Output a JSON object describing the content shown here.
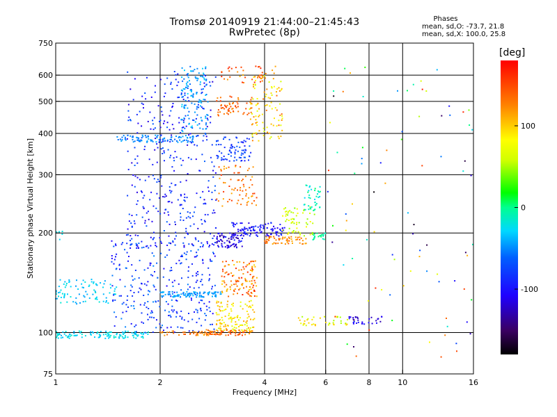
{
  "chart_data": {
    "type": "scatter",
    "title": "Tromsø 20140919 21:44:00–21:45:43",
    "subtitle": "RwPretec (8p)",
    "xlabel": "Frequency [MHz]",
    "ylabel": "Stationary phase Virtual Height [km]",
    "xscale": "log",
    "yscale": "log",
    "xlim": [
      1,
      16
    ],
    "ylim": [
      75,
      750
    ],
    "x_ticks": [
      1,
      2,
      4,
      6,
      8,
      10,
      16
    ],
    "x_tick_labels": [
      "1",
      "2",
      "4",
      "6",
      "8",
      "10",
      "16"
    ],
    "y_ticks": [
      75,
      100,
      200,
      300,
      400,
      500,
      600,
      750
    ],
    "y_tick_labels": [
      "75",
      "100",
      "200",
      "300",
      "400",
      "500",
      "600",
      "750"
    ],
    "grid": true,
    "legend": {
      "title": "Phases",
      "lines": [
        "mean, sd,O: -73.7, 21.8",
        "mean, sd,X: 100.0, 25.8"
      ]
    },
    "colorbar": {
      "unit": "[deg]",
      "range": [
        -180,
        180
      ],
      "tick_values": [
        100,
        0,
        -100
      ],
      "tick_labels": [
        "100",
        "0",
        "-100"
      ]
    },
    "clusters": [
      {
        "f": [
          1.0,
          1.85
        ],
        "h": [
          96,
          101
        ],
        "phase": [
          -40,
          -15
        ],
        "n": 120
      },
      {
        "f": [
          1.0,
          1.5
        ],
        "h": [
          122,
          145
        ],
        "phase": [
          -45,
          -15
        ],
        "n": 90
      },
      {
        "f": [
          1.0,
          1.05
        ],
        "h": [
          185,
          205
        ],
        "phase": [
          -35,
          -20
        ],
        "n": 6
      },
      {
        "f": [
          1.45,
          2.9
        ],
        "h": [
          100,
          190
        ],
        "phase": [
          -110,
          -50
        ],
        "n": 300
      },
      {
        "f": [
          1.6,
          2.9
        ],
        "h": [
          180,
          620
        ],
        "phase": [
          -120,
          -60
        ],
        "n": 380
      },
      {
        "f": [
          1.5,
          2.5
        ],
        "h": [
          375,
          395
        ],
        "phase": [
          -60,
          -40
        ],
        "n": 90
      },
      {
        "f": [
          2.0,
          3.0
        ],
        "h": [
          128,
          133
        ],
        "phase": [
          -55,
          -35
        ],
        "n": 90
      },
      {
        "f": [
          2.0,
          2.9
        ],
        "h": [
          98,
          101
        ],
        "phase": [
          110,
          150
        ],
        "n": 40
      },
      {
        "f": [
          2.3,
          2.75
        ],
        "h": [
          400,
          640
        ],
        "phase": [
          -60,
          -30
        ],
        "n": 120
      },
      {
        "f": [
          2.7,
          3.7
        ],
        "h": [
          98,
          102
        ],
        "phase": [
          120,
          160
        ],
        "n": 70
      },
      {
        "f": [
          2.9,
          3.75
        ],
        "h": [
          100,
          125
        ],
        "phase": [
          60,
          120
        ],
        "n": 120
      },
      {
        "f": [
          3.0,
          3.8
        ],
        "h": [
          128,
          165
        ],
        "phase": [
          100,
          170
        ],
        "n": 120
      },
      {
        "f": [
          2.9,
          3.5
        ],
        "h": [
          180,
          200
        ],
        "phase": [
          -140,
          -90
        ],
        "n": 80
      },
      {
        "f": [
          3.2,
          4.6
        ],
        "h": [
          195,
          215
        ],
        "phase": [
          -120,
          -80
        ],
        "n": 100
      },
      {
        "f": [
          2.9,
          3.8
        ],
        "h": [
          240,
          320
        ],
        "phase": [
          110,
          160
        ],
        "n": 70
      },
      {
        "f": [
          2.9,
          3.7
        ],
        "h": [
          330,
          390
        ],
        "phase": [
          -100,
          -60
        ],
        "n": 80
      },
      {
        "f": [
          2.9,
          3.7
        ],
        "h": [
          450,
          520
        ],
        "phase": [
          120,
          160
        ],
        "n": 60
      },
      {
        "f": [
          3.0,
          4.3
        ],
        "h": [
          560,
          640
        ],
        "phase": [
          110,
          170
        ],
        "n": 40
      },
      {
        "f": [
          3.6,
          4.5
        ],
        "h": [
          380,
          600
        ],
        "phase": [
          60,
          140
        ],
        "n": 100
      },
      {
        "f": [
          4.0,
          5.3
        ],
        "h": [
          185,
          195
        ],
        "phase": [
          110,
          150
        ],
        "n": 60
      },
      {
        "f": [
          4.5,
          5.6
        ],
        "h": [
          195,
          240
        ],
        "phase": [
          40,
          90
        ],
        "n": 60
      },
      {
        "f": [
          5.2,
          5.8
        ],
        "h": [
          230,
          280
        ],
        "phase": [
          -30,
          10
        ],
        "n": 40
      },
      {
        "f": [
          5.5,
          6.0
        ],
        "h": [
          190,
          200
        ],
        "phase": [
          -20,
          10
        ],
        "n": 20
      },
      {
        "f": [
          5.0,
          7.0
        ],
        "h": [
          105,
          112
        ],
        "phase": [
          50,
          110
        ],
        "n": 40
      },
      {
        "f": [
          7.0,
          9.0
        ],
        "h": [
          105,
          112
        ],
        "phase": [
          -130,
          -90
        ],
        "n": 30
      },
      {
        "f": [
          6.0,
          16.0
        ],
        "h": [
          80,
          650
        ],
        "phase": [
          -180,
          180
        ],
        "n": 90
      }
    ]
  }
}
